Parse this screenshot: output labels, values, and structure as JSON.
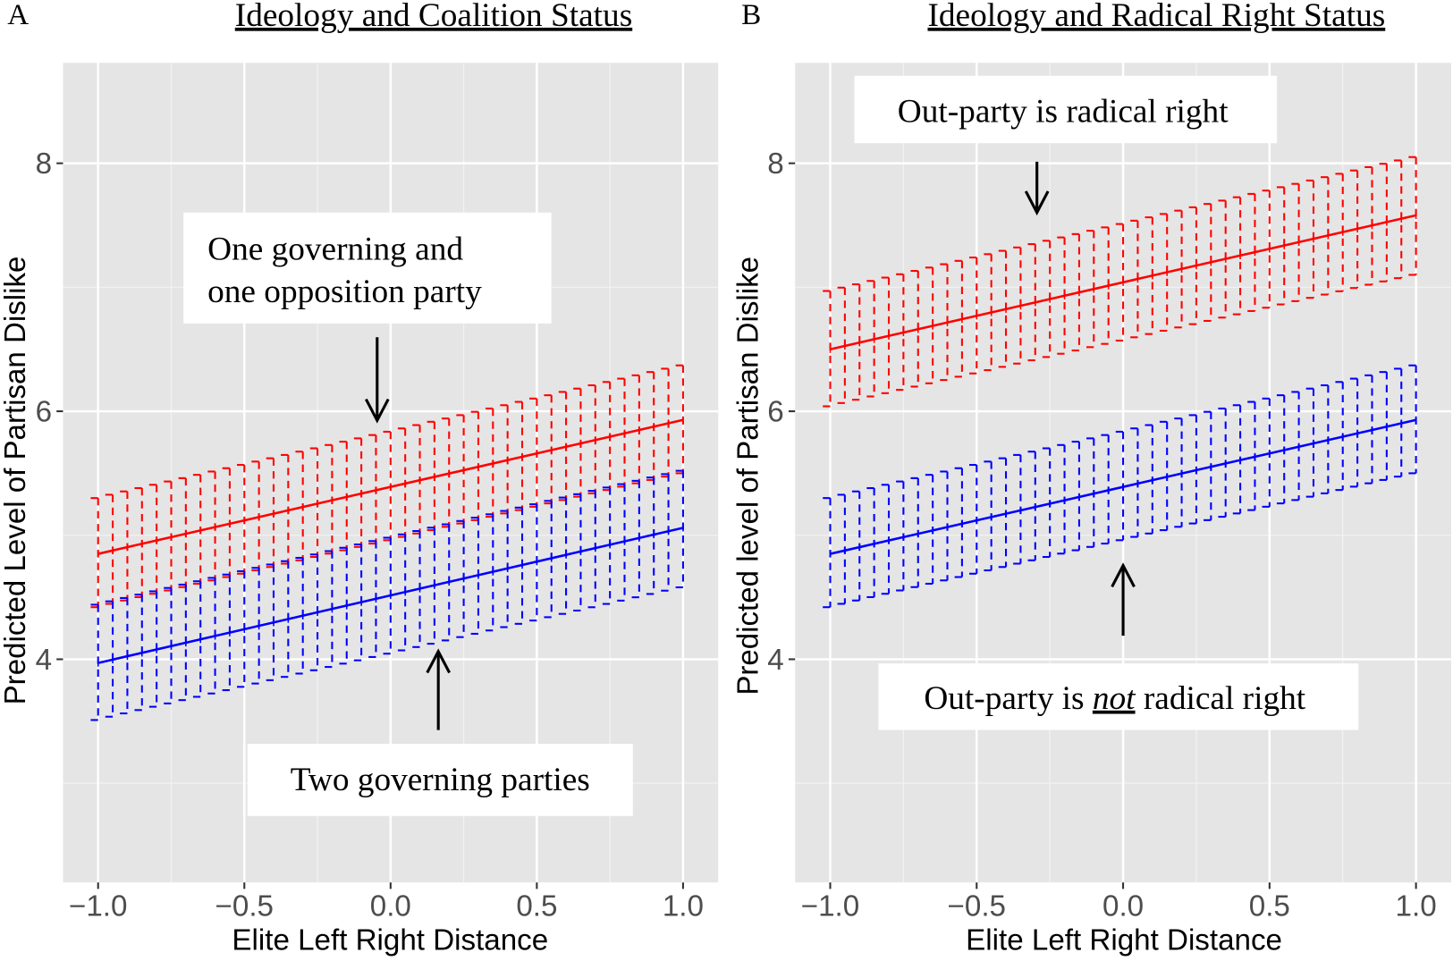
{
  "chart_data": [
    {
      "panel_label": "A",
      "type": "line",
      "title": "Ideology and Coalition Status",
      "xlabel": "Elite Left Right Distance",
      "ylabel": "Predicted Level of Partisan Dislike",
      "xlim": [
        -1.12,
        1.12
      ],
      "ylim": [
        2.2,
        8.81
      ],
      "xticks": [
        -1.0,
        -0.5,
        0.0,
        0.5,
        1.0
      ],
      "xtick_labels": [
        "-1.0",
        "-0.5",
        "0.0",
        "0.5",
        "1.0"
      ],
      "yticks": [
        4,
        6,
        8
      ],
      "ytick_labels": [
        "4",
        "6",
        "8"
      ],
      "grid": true,
      "error_bar_step": 0.05,
      "series": [
        {
          "color": "#ff0000",
          "x": [
            -1.0,
            1.0
          ],
          "fit": [
            4.85,
            5.93
          ],
          "lower": [
            4.42,
            5.5
          ],
          "upper": [
            5.3,
            6.37
          ]
        },
        {
          "color": "#0000ff",
          "x": [
            -1.0,
            1.0
          ],
          "fit": [
            3.97,
            5.06
          ],
          "lower": [
            3.51,
            4.58
          ],
          "upper": [
            4.44,
            5.52
          ]
        }
      ],
      "annotations": [
        {
          "lines": [
            "One governing and",
            "one opposition party"
          ],
          "arrow": "down"
        },
        {
          "lines": [
            "Two governing parties"
          ],
          "arrow": "up"
        }
      ]
    },
    {
      "panel_label": "B",
      "type": "line",
      "title": "Ideology and Radical Right Status",
      "xlabel": "Elite Left Right Distance",
      "ylabel": "Predicted level of Partisan Dislike",
      "xlim": [
        -1.12,
        1.12
      ],
      "ylim": [
        2.2,
        8.81
      ],
      "xticks": [
        -1.0,
        -0.5,
        0.0,
        0.5,
        1.0
      ],
      "xtick_labels": [
        "-1.0",
        "-0.5",
        "0.0",
        "0.5",
        "1.0"
      ],
      "yticks": [
        4,
        6,
        8
      ],
      "ytick_labels": [
        "4",
        "6",
        "8"
      ],
      "grid": true,
      "error_bar_step": 0.05,
      "series": [
        {
          "color": "#ff0000",
          "x": [
            -1.0,
            1.0
          ],
          "fit": [
            6.5,
            7.58
          ],
          "lower": [
            6.04,
            7.1
          ],
          "upper": [
            6.97,
            8.05
          ]
        },
        {
          "color": "#0000ff",
          "x": [
            -1.0,
            1.0
          ],
          "fit": [
            4.85,
            5.93
          ],
          "lower": [
            4.42,
            5.5
          ],
          "upper": [
            5.3,
            6.37
          ]
        }
      ],
      "annotations": [
        {
          "lines": [
            "Out-party is radical right"
          ],
          "arrow": "down"
        },
        {
          "parts": [
            "Out-party is ",
            "not",
            " radical right"
          ],
          "arrow": "up"
        }
      ]
    }
  ]
}
